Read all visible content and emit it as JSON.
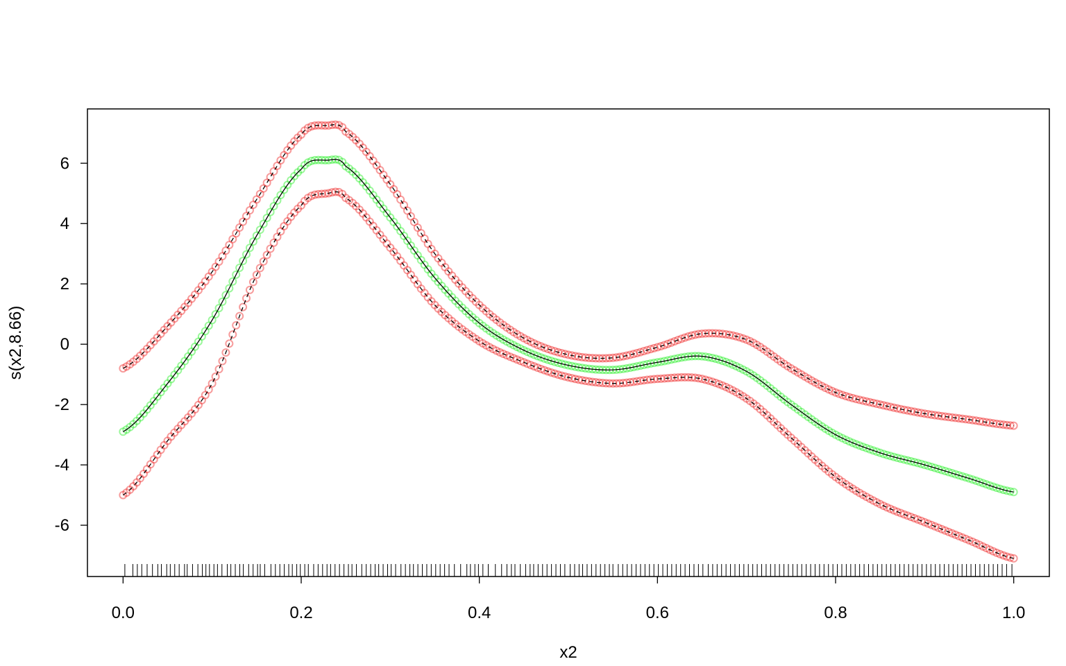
{
  "chart_data": {
    "type": "line",
    "title": "",
    "xlabel": "x2",
    "ylabel": "s(x2,8.66)",
    "xlim": [
      -0.04,
      1.04
    ],
    "ylim": [
      -7.7,
      7.8
    ],
    "x_ticks": [
      0.0,
      0.2,
      0.4,
      0.6,
      0.8,
      1.0
    ],
    "x_tick_labels": [
      "0.0",
      "0.2",
      "0.4",
      "0.6",
      "0.8",
      "1.0"
    ],
    "y_ticks": [
      -6,
      -4,
      -2,
      0,
      2,
      4,
      6
    ],
    "y_tick_labels": [
      "-6",
      "-4",
      "-2",
      "0",
      "2",
      "4",
      "6"
    ],
    "grid": false,
    "legend": "none",
    "x": [
      0.0,
      0.05,
      0.1,
      0.15,
      0.2,
      0.23,
      0.25,
      0.3,
      0.35,
      0.4,
      0.45,
      0.5,
      0.55,
      0.6,
      0.65,
      0.7,
      0.75,
      0.8,
      0.85,
      0.9,
      0.95,
      1.0
    ],
    "series": [
      {
        "role": "estimate",
        "line_style": "solid",
        "line_color": "#000000",
        "point_color": "#22ee22",
        "values": [
          -2.9,
          -1.3,
          0.8,
          3.6,
          5.8,
          6.1,
          5.9,
          4.2,
          2.2,
          0.7,
          -0.2,
          -0.7,
          -0.85,
          -0.6,
          -0.4,
          -0.9,
          -2.0,
          -3.0,
          -3.6,
          -4.0,
          -4.45,
          -4.9
        ]
      },
      {
        "role": "upper-band",
        "line_style": "dashed",
        "line_color": "#000000",
        "point_color": "#ee2222",
        "values": [
          -0.8,
          0.6,
          2.4,
          4.8,
          6.95,
          7.25,
          7.05,
          5.3,
          3.0,
          1.3,
          0.2,
          -0.35,
          -0.45,
          -0.1,
          0.35,
          0.15,
          -0.8,
          -1.6,
          -2.0,
          -2.3,
          -2.5,
          -2.7
        ]
      },
      {
        "role": "lower-band",
        "line_style": "dashed",
        "line_color": "#000000",
        "point_color": "#ee2222",
        "values": [
          -5.0,
          -3.2,
          -1.3,
          2.3,
          4.6,
          5.0,
          4.85,
          3.2,
          1.3,
          0.1,
          -0.6,
          -1.1,
          -1.3,
          -1.15,
          -1.15,
          -1.8,
          -3.1,
          -4.4,
          -5.3,
          -5.9,
          -6.5,
          -7.1
        ]
      }
    ],
    "rug_x": [
      0.002,
      0.011,
      0.016,
      0.021,
      0.027,
      0.033,
      0.039,
      0.043,
      0.049,
      0.053,
      0.058,
      0.063,
      0.069,
      0.072,
      0.078,
      0.084,
      0.089,
      0.093,
      0.097,
      0.102,
      0.106,
      0.111,
      0.117,
      0.121,
      0.126,
      0.131,
      0.135,
      0.141,
      0.146,
      0.151,
      0.154,
      0.159,
      0.166,
      0.171,
      0.176,
      0.181,
      0.186,
      0.19,
      0.195,
      0.199,
      0.204,
      0.208,
      0.214,
      0.219,
      0.224,
      0.229,
      0.233,
      0.238,
      0.243,
      0.248,
      0.253,
      0.257,
      0.262,
      0.268,
      0.273,
      0.278,
      0.283,
      0.287,
      0.292,
      0.297,
      0.301,
      0.306,
      0.312,
      0.317,
      0.322,
      0.326,
      0.331,
      0.336,
      0.341,
      0.346,
      0.351,
      0.356,
      0.361,
      0.366,
      0.372,
      0.379,
      0.386,
      0.39,
      0.395,
      0.399,
      0.404,
      0.41,
      0.418,
      0.425,
      0.431,
      0.436,
      0.44,
      0.446,
      0.452,
      0.457,
      0.461,
      0.466,
      0.471,
      0.476,
      0.481,
      0.486,
      0.491,
      0.496,
      0.502,
      0.507,
      0.512,
      0.516,
      0.521,
      0.526,
      0.531,
      0.536,
      0.541,
      0.546,
      0.55,
      0.556,
      0.561,
      0.566,
      0.571,
      0.576,
      0.581,
      0.586,
      0.591,
      0.596,
      0.601,
      0.606,
      0.611,
      0.616,
      0.621,
      0.626,
      0.631,
      0.636,
      0.641,
      0.646,
      0.651,
      0.657,
      0.662,
      0.667,
      0.672,
      0.677,
      0.682,
      0.687,
      0.692,
      0.697,
      0.702,
      0.707,
      0.712,
      0.717,
      0.722,
      0.727,
      0.732,
      0.737,
      0.742,
      0.747,
      0.752,
      0.757,
      0.762,
      0.767,
      0.772,
      0.777,
      0.782,
      0.787,
      0.792,
      0.797,
      0.802,
      0.807,
      0.812,
      0.817,
      0.822,
      0.827,
      0.832,
      0.837,
      0.842,
      0.847,
      0.852,
      0.857,
      0.862,
      0.867,
      0.872,
      0.877,
      0.882,
      0.887,
      0.892,
      0.897,
      0.902,
      0.907,
      0.912,
      0.917,
      0.922,
      0.927,
      0.932,
      0.937,
      0.942,
      0.947,
      0.952,
      0.957,
      0.962,
      0.967,
      0.972,
      0.977,
      0.982,
      0.987,
      0.992,
      0.998
    ]
  }
}
